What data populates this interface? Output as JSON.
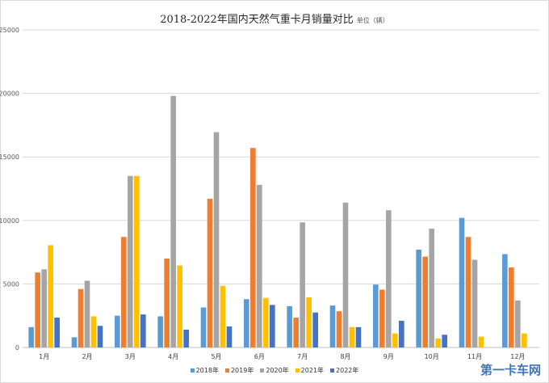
{
  "title": "2018-2022年国内天然气重卡月销量对比",
  "unit": "单位（辆）",
  "watermark": "第一卡车网",
  "chart_data": {
    "type": "bar",
    "title": "2018-2022年国内天然气重卡月销量对比",
    "unit_label": "单位（辆）",
    "categories": [
      "1月",
      "2月",
      "3月",
      "4月",
      "5月",
      "6月",
      "7月",
      "8月",
      "9月",
      "10月",
      "11月",
      "12月"
    ],
    "ylim": [
      0,
      25000
    ],
    "yticks": [
      0,
      5000,
      10000,
      15000,
      20000,
      25000
    ],
    "grid": true,
    "legend_position": "bottom",
    "series": [
      {
        "name": "2018年",
        "color": "#5b9bd5",
        "values": [
          1600,
          800,
          2500,
          2450,
          3150,
          3800,
          3250,
          3300,
          4950,
          7700,
          10200,
          7350
        ]
      },
      {
        "name": "2019年",
        "color": "#ed7d31",
        "values": [
          5900,
          4600,
          8700,
          7000,
          11700,
          15700,
          2350,
          2850,
          4550,
          7150,
          8700,
          6300
        ]
      },
      {
        "name": "2020年",
        "color": "#a5a5a5",
        "values": [
          6150,
          5250,
          13500,
          19800,
          16950,
          12800,
          9850,
          11400,
          10800,
          9350,
          6900,
          3700
        ]
      },
      {
        "name": "2021年",
        "color": "#ffc000",
        "values": [
          8050,
          2450,
          13500,
          6450,
          4850,
          3900,
          3950,
          1600,
          1100,
          700,
          850,
          1100
        ]
      },
      {
        "name": "2022年",
        "color": "#4472c4",
        "values": [
          2350,
          1700,
          2600,
          1400,
          1650,
          3350,
          2750,
          1600,
          2100,
          1000,
          null,
          null
        ]
      }
    ]
  }
}
